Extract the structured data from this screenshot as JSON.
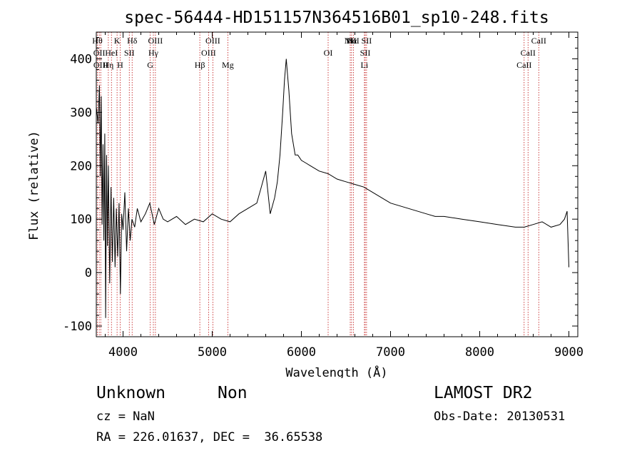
{
  "chart_data": {
    "type": "line",
    "title": "spec-56444-HD151157N364516B01_sp10-248.fits",
    "xlabel": "Wavelength (Å)",
    "ylabel": "Flux (relative)",
    "xlim": [
      3700,
      9100
    ],
    "ylim": [
      -120,
      450
    ],
    "xticks": [
      4000,
      5000,
      6000,
      7000,
      8000,
      9000
    ],
    "yticks": [
      -100,
      0,
      100,
      200,
      300,
      400
    ],
    "series": [
      {
        "x": [
          3700,
          3720,
          3735,
          3745,
          3755,
          3765,
          3775,
          3785,
          3795,
          3805,
          3815,
          3825,
          3835,
          3850,
          3865,
          3880,
          3895,
          3910,
          3925,
          3940,
          3955,
          3970,
          3985,
          4000,
          4020,
          4040,
          4060,
          4080,
          4100,
          4130,
          4160,
          4200,
          4250,
          4300,
          4350,
          4400,
          4450,
          4500,
          4600,
          4700,
          4800,
          4900,
          5000,
          5100,
          5200,
          5300,
          5400,
          5500,
          5550,
          5600,
          5650,
          5700,
          5730,
          5760,
          5790,
          5810,
          5830,
          5845,
          5860,
          5875,
          5890,
          5910,
          5930,
          5960,
          6000,
          6050,
          6100,
          6200,
          6300,
          6400,
          6500,
          6600,
          6700,
          6800,
          6900,
          7000,
          7200,
          7400,
          7500,
          7600,
          7800,
          8000,
          8200,
          8400,
          8500,
          8600,
          8700,
          8800,
          8900,
          8950,
          8980,
          9000
        ],
        "y": [
          310,
          280,
          350,
          180,
          330,
          90,
          240,
          60,
          260,
          -85,
          220,
          50,
          200,
          -20,
          160,
          20,
          140,
          10,
          120,
          30,
          130,
          -40,
          110,
          80,
          150,
          40,
          120,
          60,
          100,
          85,
          120,
          95,
          110,
          130,
          90,
          120,
          100,
          95,
          105,
          90,
          100,
          95,
          110,
          100,
          95,
          110,
          120,
          130,
          160,
          190,
          110,
          140,
          170,
          220,
          300,
          360,
          400,
          370,
          340,
          300,
          260,
          240,
          220,
          220,
          210,
          205,
          200,
          190,
          185,
          175,
          170,
          165,
          160,
          150,
          140,
          130,
          120,
          110,
          105,
          105,
          100,
          95,
          90,
          85,
          85,
          90,
          95,
          85,
          90,
          100,
          115,
          10
        ]
      }
    ],
    "line_labels": [
      {
        "wl": 3712,
        "text": "Hθ",
        "row": 1
      },
      {
        "wl": 3733,
        "text": "OII",
        "row": 2
      },
      {
        "wl": 3750,
        "text": "OIII",
        "row": 3
      },
      {
        "wl": 3870,
        "text": "HeI",
        "row": 2
      },
      {
        "wl": 3835,
        "text": "Hη",
        "row": 3
      },
      {
        "wl": 3933,
        "text": "K",
        "row": 1
      },
      {
        "wl": 3968,
        "text": "H",
        "row": 3
      },
      {
        "wl": 4070,
        "text": "SII",
        "row": 2
      },
      {
        "wl": 4102,
        "text": "Hδ",
        "row": 1
      },
      {
        "wl": 4305,
        "text": "G",
        "row": 3
      },
      {
        "wl": 4340,
        "text": "Hγ",
        "row": 2
      },
      {
        "wl": 4363,
        "text": "OIII",
        "row": 1
      },
      {
        "wl": 4861,
        "text": "Hβ",
        "row": 3
      },
      {
        "wl": 4959,
        "text": "OIII",
        "row": 2
      },
      {
        "wl": 5007,
        "text": "OIII",
        "row": 1
      },
      {
        "wl": 5175,
        "text": "Mg",
        "row": 3
      },
      {
        "wl": 6300,
        "text": "OI",
        "row": 2
      },
      {
        "wl": 6548,
        "text": "NII",
        "row": 1
      },
      {
        "wl": 6583,
        "text": "NII",
        "row": 1
      },
      {
        "wl": 6563,
        "text": "Hα",
        "row": 1
      },
      {
        "wl": 6707,
        "text": "Li",
        "row": 3
      },
      {
        "wl": 6716,
        "text": "SII",
        "row": 2
      },
      {
        "wl": 6731,
        "text": "SII",
        "row": 1
      },
      {
        "wl": 8498,
        "text": "CaII",
        "row": 3
      },
      {
        "wl": 8542,
        "text": "CaII",
        "row": 2
      },
      {
        "wl": 8662,
        "text": "CaII",
        "row": 1
      }
    ],
    "grid": false
  },
  "info": {
    "object_class": "Unknown",
    "object_subclass": "Non",
    "survey": "LAMOST DR2",
    "cz": "cz = NaN",
    "obs_date": "Obs-Date: 20130531",
    "radec": "RA = 226.01637, DEC =  36.65538"
  },
  "colors": {
    "spectrum": "#000000",
    "line_markers": "#c01010",
    "background": "#ffffff"
  }
}
